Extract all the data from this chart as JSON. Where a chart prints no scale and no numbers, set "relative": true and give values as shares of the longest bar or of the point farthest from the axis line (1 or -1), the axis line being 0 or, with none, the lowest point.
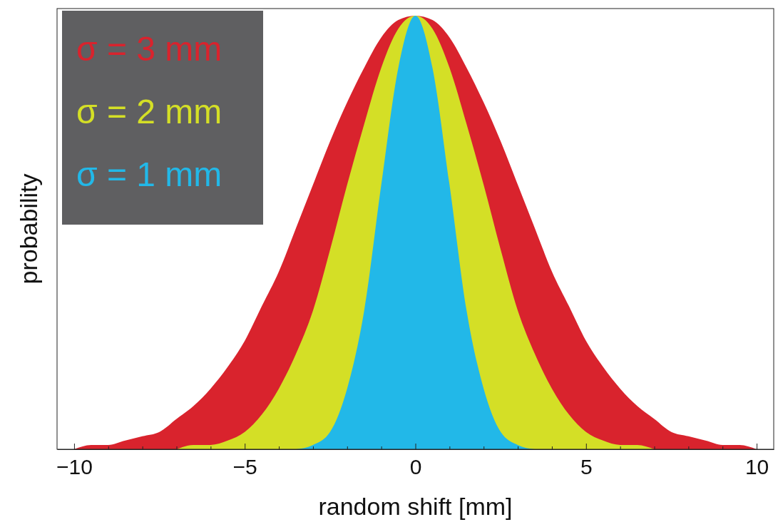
{
  "chart_data": {
    "type": "area",
    "xlabel": "random shift [mm]",
    "ylabel": "probability",
    "relative": true,
    "legend": "top left",
    "x": [
      -10,
      -9.5,
      -9,
      -8.5,
      -8,
      -7.5,
      -7,
      -6.5,
      -6,
      -5.5,
      -5,
      -4.5,
      -4,
      -3.5,
      -3,
      -2.5,
      -2,
      -1.5,
      -1,
      -0.5,
      0,
      0.5,
      1,
      1.5,
      2,
      2.5,
      3,
      3.5,
      4,
      4.5,
      5,
      5.5,
      6,
      6.5,
      7,
      7.5,
      8,
      8.5,
      9,
      9.5,
      10
    ],
    "xlim": [
      -10.5,
      10.5
    ],
    "xticks": [
      {
        "value": -10,
        "label": "−10"
      },
      {
        "value": -9,
        "label": null
      },
      {
        "value": -8,
        "label": null
      },
      {
        "value": -7,
        "label": null
      },
      {
        "value": -6,
        "label": null
      },
      {
        "value": -5,
        "label": "−5"
      },
      {
        "value": -4,
        "label": null
      },
      {
        "value": -3,
        "label": null
      },
      {
        "value": -2,
        "label": null
      },
      {
        "value": -1,
        "label": null
      },
      0,
      {
        "value": 1,
        "label": null
      },
      {
        "value": 2,
        "label": null
      },
      {
        "value": 3,
        "label": null
      },
      {
        "value": 4,
        "label": null
      },
      5,
      {
        "value": 6,
        "label": null
      },
      {
        "value": 7,
        "label": null
      },
      {
        "value": 8,
        "label": null
      },
      {
        "value": 9,
        "label": null
      },
      10
    ],
    "tick_labels": "x",
    "series": [
      {
        "name": "σ = 3 mm",
        "color": "#d9232d",
        "values": [
          0,
          0.01,
          0.01,
          0.02,
          0.03,
          0.04,
          0.07,
          0.1,
          0.14,
          0.19,
          0.25,
          0.33,
          0.41,
          0.51,
          0.61,
          0.71,
          0.8,
          0.88,
          0.95,
          0.99,
          1,
          0.99,
          0.95,
          0.88,
          0.8,
          0.71,
          0.61,
          0.51,
          0.41,
          0.33,
          0.25,
          0.19,
          0.14,
          0.1,
          0.07,
          0.04,
          0.03,
          0.02,
          0.01,
          0.01,
          0
        ]
      },
      {
        "name": "σ = 2 mm",
        "color": "#d4df26",
        "x": [
          -7,
          -6.5,
          -6,
          -5.5,
          -5,
          -4.5,
          -4,
          -3.5,
          -3,
          -2.5,
          -2,
          -1.5,
          -1,
          -0.5,
          0,
          0.5,
          1,
          1.5,
          2,
          2.5,
          3,
          3.5,
          4,
          4.5,
          5,
          5.5,
          6,
          6.5,
          7
        ],
        "values": [
          0,
          0.01,
          0.01,
          0.02,
          0.04,
          0.08,
          0.14,
          0.22,
          0.32,
          0.46,
          0.61,
          0.75,
          0.88,
          0.97,
          1,
          0.97,
          0.88,
          0.75,
          0.61,
          0.46,
          0.32,
          0.22,
          0.14,
          0.08,
          0.04,
          0.02,
          0.01,
          0.01,
          0
        ]
      },
      {
        "name": "σ = 1 mm",
        "color": "#22b8e8",
        "x": [
          -3.5,
          -3,
          -2.5,
          -2,
          -1.5,
          -1,
          -0.5,
          0,
          0.5,
          1,
          1.5,
          2,
          2.5,
          3,
          3.5
        ],
        "values": [
          0,
          0.01,
          0.04,
          0.14,
          0.32,
          0.61,
          0.88,
          1,
          0.88,
          0.61,
          0.32,
          0.14,
          0.04,
          0.01,
          0
        ]
      }
    ]
  }
}
